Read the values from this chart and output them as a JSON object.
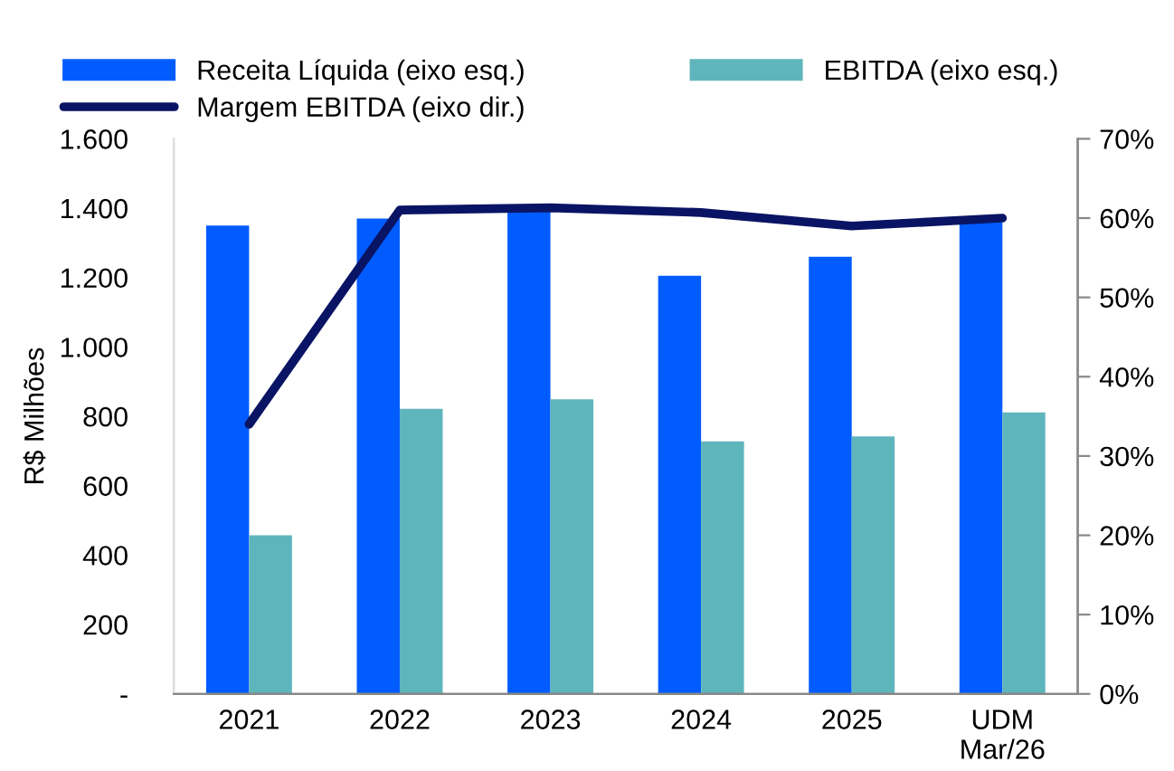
{
  "chart_data": {
    "type": "bar",
    "categories": [
      "2021",
      "2022",
      "2023",
      "2024",
      "2025",
      "UDM\nMar/26"
    ],
    "series": [
      {
        "name": "Receita Líquida (eixo esq.)",
        "color": "#005cff",
        "values": [
          1350,
          1370,
          1390,
          1205,
          1260,
          1365
        ]
      },
      {
        "name": "EBITDA (eixo esq.)",
        "color": "#5fb5bc",
        "values": [
          457,
          822,
          849,
          728,
          742,
          811
        ]
      },
      {
        "name": "Margem EBITDA (eixo dir.)",
        "type": "line",
        "axis": "y2",
        "color": "#0a1464",
        "values": [
          34,
          61,
          61.3,
          60.7,
          59,
          60
        ]
      }
    ],
    "ylabel": "R$ Milhões",
    "ylim": [
      0,
      1600
    ],
    "yticks": [
      {
        "value": 0,
        "label": "-"
      },
      {
        "value": 200,
        "label": "200"
      },
      {
        "value": 400,
        "label": "400"
      },
      {
        "value": 600,
        "label": "600"
      },
      {
        "value": 800,
        "label": "800"
      },
      {
        "value": 1000,
        "label": "1.000"
      },
      {
        "value": 1200,
        "label": "1.200"
      },
      {
        "value": 1400,
        "label": "1.400"
      },
      {
        "value": 1600,
        "label": "1.600"
      }
    ],
    "y2lim": [
      0,
      70
    ],
    "y2ticks": [
      {
        "value": 0,
        "label": "0%"
      },
      {
        "value": 10,
        "label": "10%"
      },
      {
        "value": 20,
        "label": "20%"
      },
      {
        "value": 30,
        "label": "30%"
      },
      {
        "value": 40,
        "label": "40%"
      },
      {
        "value": 50,
        "label": "50%"
      },
      {
        "value": 60,
        "label": "60%"
      },
      {
        "value": 70,
        "label": "70%"
      }
    ],
    "grid": false,
    "legend": "top",
    "marker": "none",
    "line_style": "solid"
  }
}
